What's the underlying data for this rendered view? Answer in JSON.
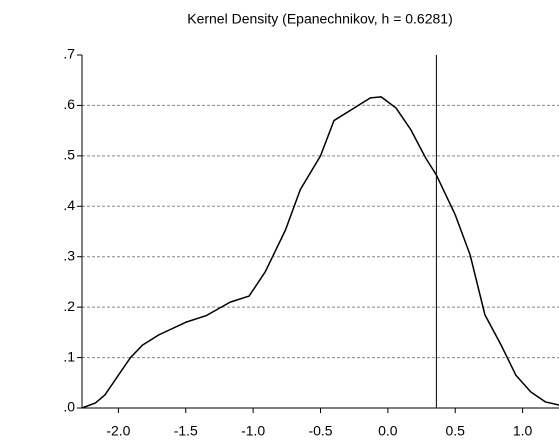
{
  "chart_data": {
    "type": "line",
    "title": "Kernel Density (Epanechnikov, h = 0.6281)",
    "x": [
      -2.27,
      -2.17,
      -2.1,
      -2.0,
      -1.91,
      -1.82,
      -1.7,
      -1.5,
      -1.35,
      -1.17,
      -1.03,
      -0.91,
      -0.76,
      -0.65,
      -0.5,
      -0.4,
      -0.28,
      -0.13,
      -0.05,
      0.06,
      0.17,
      0.28,
      0.36,
      0.5,
      0.61,
      0.72,
      0.84,
      0.95,
      1.06,
      1.17,
      1.27
    ],
    "values": [
      0.0,
      0.01,
      0.026,
      0.065,
      0.1,
      0.125,
      0.145,
      0.17,
      0.183,
      0.21,
      0.222,
      0.27,
      0.353,
      0.433,
      0.5,
      0.57,
      0.59,
      0.615,
      0.617,
      0.595,
      0.552,
      0.496,
      0.462,
      0.383,
      0.304,
      0.185,
      0.125,
      0.065,
      0.032,
      0.012,
      0.006
    ],
    "color": "#000000",
    "vline": 0.36,
    "xlim": [
      -2.27,
      1.27
    ],
    "ylim": [
      0,
      0.7
    ],
    "xticks": [
      {
        "value": -2.0,
        "label": "-2.0"
      },
      {
        "value": -1.5,
        "label": "-1.5"
      },
      {
        "value": -1.0,
        "label": "-1.0"
      },
      {
        "value": -0.5,
        "label": "-0.5"
      },
      {
        "value": 0.0,
        "label": "0.0"
      },
      {
        "value": 0.5,
        "label": "0.5"
      },
      {
        "value": 1.0,
        "label": "1.0"
      }
    ],
    "yticks": [
      {
        "value": 0,
        "label": ".0"
      },
      {
        "value": 0.1,
        "label": ".1"
      },
      {
        "value": 0.2,
        "label": ".2"
      },
      {
        "value": 0.3,
        "label": ".3"
      },
      {
        "value": 0.4,
        "label": ".4"
      },
      {
        "value": 0.5,
        "label": ".5"
      },
      {
        "value": 0.6,
        "label": ".6"
      },
      {
        "value": 0.7,
        "label": ".7"
      }
    ],
    "grid": true
  }
}
